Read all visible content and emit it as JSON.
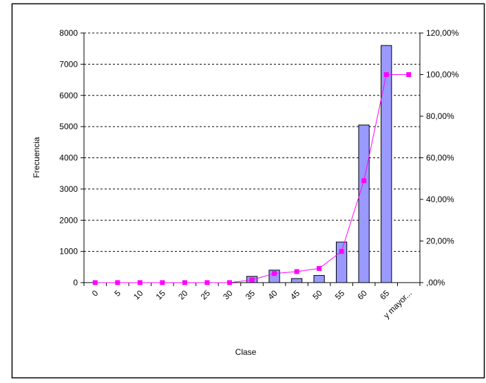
{
  "chart_data": {
    "type": "bar",
    "title": "",
    "xlabel": "Clase",
    "ylabel": "Frecuencia",
    "categories": [
      "0",
      "5",
      "10",
      "15",
      "20",
      "25",
      "30",
      "35",
      "40",
      "45",
      "50",
      "55",
      "60",
      "65",
      "y mayor..."
    ],
    "series": [
      {
        "type": "bar",
        "axis": "left",
        "values": [
          0,
          0,
          0,
          0,
          0,
          0,
          0,
          200,
          400,
          130,
          230,
          1300,
          5050,
          7600,
          0
        ],
        "color": "#9999ff"
      },
      {
        "type": "line",
        "axis": "right",
        "values": [
          0,
          0,
          0,
          0,
          0,
          0,
          0,
          1.3,
          4.4,
          5.3,
          6.8,
          15.0,
          49.0,
          100.0,
          100.0
        ],
        "color": "#ff00ff"
      }
    ],
    "ylim": [
      0,
      8000
    ],
    "y_ticks": [
      "0",
      "1000",
      "2000",
      "3000",
      "4000",
      "5000",
      "6000",
      "7000",
      "8000"
    ],
    "y2lim": [
      0,
      120
    ],
    "y2_ticks": [
      ",00%",
      "20,00%",
      "40,00%",
      "60,00%",
      "80,00%",
      "100,00%",
      "120,00%"
    ],
    "grid": true,
    "legend": "none"
  }
}
